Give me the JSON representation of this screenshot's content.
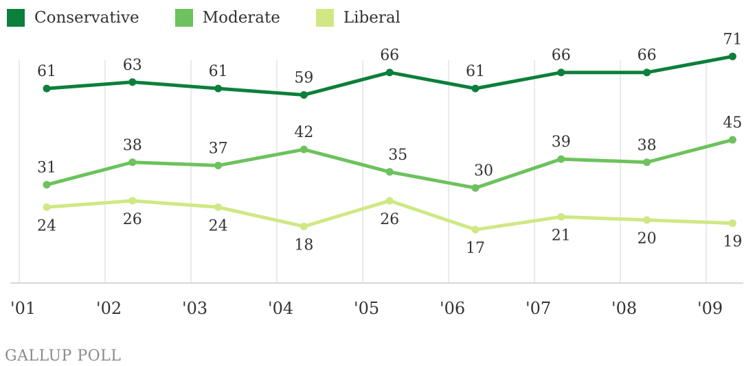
{
  "chart_data": {
    "type": "line",
    "categories": [
      "'01",
      "'02",
      "'03",
      "'04",
      "'05",
      "'06",
      "'07",
      "'08",
      "'09"
    ],
    "series": [
      {
        "name": "Conservative",
        "color": "#0b7f3b",
        "values": [
          61,
          63,
          61,
          59,
          66,
          61,
          66,
          66,
          71
        ]
      },
      {
        "name": "Moderate",
        "color": "#6cc25c",
        "values": [
          31,
          38,
          37,
          42,
          35,
          30,
          39,
          38,
          45
        ]
      },
      {
        "name": "Liberal",
        "color": "#cfe884",
        "values": [
          24,
          26,
          24,
          18,
          26,
          17,
          21,
          20,
          19
        ]
      }
    ],
    "ylim": [
      0,
      80
    ],
    "grid": true,
    "legend": "top-left"
  },
  "source": "GALLUP POLL"
}
